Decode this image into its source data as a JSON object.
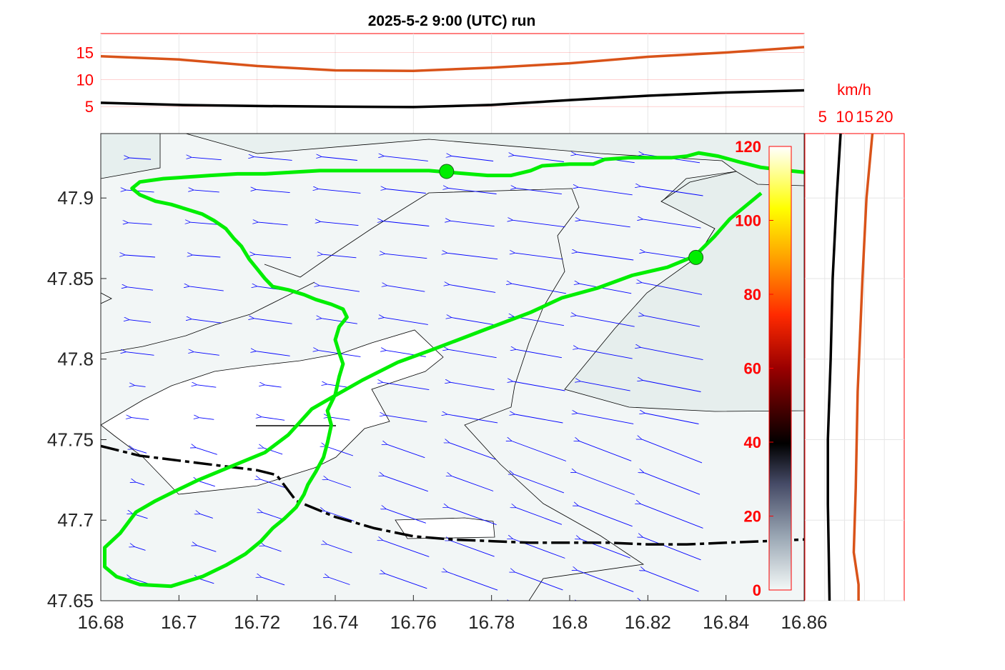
{
  "title": "2025-5-2  9:00 (UTC) run",
  "colors": {
    "track": "#00ee00",
    "border": "#000000",
    "wind_arrow": "#0000ff",
    "series_dark": "#000000",
    "series_orange": "#d95319",
    "tick_red": "#ff0000",
    "tick_dark": "#262626",
    "map_fill": "#f2f6f6",
    "map_fill_dark": "#e8f0ef"
  },
  "chart_data": [
    {
      "id": "top-timeseries",
      "type": "line",
      "ylim": [
        0,
        18.5
      ],
      "xlim": [
        16.68,
        16.86
      ],
      "y_ticks": [
        "5",
        "10",
        "15"
      ],
      "grid": true,
      "series": [
        {
          "color": "#d95319",
          "x": [
            16.68,
            16.7,
            16.72,
            16.74,
            16.76,
            16.78,
            16.8,
            16.82,
            16.84,
            16.86
          ],
          "values": [
            14.3,
            13.7,
            12.5,
            11.7,
            11.6,
            12.2,
            13.0,
            14.2,
            15.0,
            16.0
          ]
        },
        {
          "color": "#000000",
          "x": [
            16.68,
            16.7,
            16.72,
            16.74,
            16.76,
            16.78,
            16.8,
            16.82,
            16.84,
            16.86
          ],
          "values": [
            5.7,
            5.3,
            5.1,
            5.0,
            4.9,
            5.3,
            6.2,
            7.0,
            7.6,
            8.0
          ]
        }
      ]
    },
    {
      "id": "side-profile",
      "type": "line",
      "unit_label": "km/h",
      "x_ticks": [
        "5",
        "10",
        "15",
        "20"
      ],
      "xlim": [
        0,
        25
      ],
      "ylim": [
        47.65,
        47.94
      ],
      "grid": true,
      "series": [
        {
          "color": "#000000",
          "y": [
            47.65,
            47.68,
            47.71,
            47.75,
            47.8,
            47.85,
            47.9,
            47.94
          ],
          "values": [
            6.2,
            6.0,
            5.8,
            5.8,
            6.5,
            7.0,
            8.0,
            9.0
          ]
        },
        {
          "color": "#d95319",
          "y": [
            47.65,
            47.66,
            47.68,
            47.72,
            47.78,
            47.85,
            47.9,
            47.94
          ],
          "values": [
            13.5,
            13.5,
            12.3,
            12.8,
            13.3,
            14.5,
            15.5,
            17.0
          ]
        }
      ]
    },
    {
      "id": "map",
      "type": "map",
      "xlim": [
        16.68,
        16.86
      ],
      "ylim": [
        47.65,
        47.94
      ],
      "x_ticks": [
        "16.68",
        "16.7",
        "16.72",
        "16.74",
        "16.76",
        "16.78",
        "16.8",
        "16.82",
        "16.84",
        "16.86"
      ],
      "y_ticks": [
        "47.65",
        "47.7",
        "47.75",
        "47.8",
        "47.85",
        "47.9"
      ],
      "wind_direction": "from east, slightly southeast",
      "points": [
        {
          "x": 16.7685,
          "y": 47.9165
        },
        {
          "x": 16.8323,
          "y": 47.8631
        }
      ],
      "flight_track": [
        [
          16.769,
          47.916
        ],
        [
          16.779,
          47.914
        ],
        [
          16.785,
          47.914
        ],
        [
          16.79,
          47.917
        ],
        [
          16.793,
          47.92
        ],
        [
          16.8,
          47.921
        ],
        [
          16.806,
          47.921
        ],
        [
          16.809,
          47.924
        ],
        [
          16.815,
          47.925
        ],
        [
          16.826,
          47.925
        ],
        [
          16.83,
          47.926
        ],
        [
          16.833,
          47.928
        ],
        [
          16.838,
          47.926
        ],
        [
          16.844,
          47.922
        ],
        [
          16.849,
          47.919
        ],
        [
          16.856,
          47.917
        ],
        [
          16.86,
          47.916
        ]
      ],
      "route_track": [
        [
          16.849,
          47.903
        ],
        [
          16.845,
          47.895
        ],
        [
          16.841,
          47.887
        ],
        [
          16.837,
          47.876
        ],
        [
          16.832,
          47.864
        ],
        [
          16.825,
          47.857
        ],
        [
          16.816,
          47.852
        ],
        [
          16.807,
          47.844
        ],
        [
          16.798,
          47.838
        ],
        [
          16.79,
          47.829
        ],
        [
          16.778,
          47.818
        ],
        [
          16.765,
          47.806
        ],
        [
          16.756,
          47.798
        ],
        [
          16.747,
          47.787
        ],
        [
          16.739,
          47.776
        ],
        [
          16.734,
          47.769
        ],
        [
          16.731,
          47.761
        ],
        [
          16.728,
          47.753
        ],
        [
          16.722,
          47.742
        ],
        [
          16.711,
          47.731
        ],
        [
          16.705,
          47.725
        ],
        [
          16.699,
          47.718
        ],
        [
          16.694,
          47.712
        ],
        [
          16.689,
          47.705
        ],
        [
          16.685,
          47.692
        ],
        [
          16.681,
          47.683
        ],
        [
          16.681,
          47.671
        ],
        [
          16.684,
          47.665
        ],
        [
          16.69,
          47.66
        ],
        [
          16.698,
          47.659
        ],
        [
          16.706,
          47.665
        ],
        [
          16.712,
          47.672
        ],
        [
          16.717,
          47.679
        ],
        [
          16.721,
          47.687
        ],
        [
          16.724,
          47.695
        ],
        [
          16.727,
          47.701
        ],
        [
          16.73,
          47.708
        ],
        [
          16.732,
          47.716
        ],
        [
          16.733,
          47.722
        ],
        [
          16.735,
          47.73
        ],
        [
          16.737,
          47.739
        ],
        [
          16.738,
          47.748
        ],
        [
          16.739,
          47.759
        ],
        [
          16.738,
          47.768
        ],
        [
          16.74,
          47.778
        ],
        [
          16.741,
          47.789
        ],
        [
          16.742,
          47.797
        ],
        [
          16.741,
          47.804
        ],
        [
          16.74,
          47.812
        ],
        [
          16.741,
          47.82
        ],
        [
          16.743,
          47.826
        ],
        [
          16.742,
          47.831
        ],
        [
          16.739,
          47.834
        ],
        [
          16.735,
          47.837
        ],
        [
          16.732,
          47.84
        ],
        [
          16.728,
          47.843
        ],
        [
          16.724,
          47.845
        ],
        [
          16.722,
          47.85
        ],
        [
          16.72,
          47.856
        ],
        [
          16.718,
          47.862
        ],
        [
          16.716,
          47.87
        ],
        [
          16.714,
          47.875
        ],
        [
          16.712,
          47.881
        ],
        [
          16.709,
          47.886
        ],
        [
          16.706,
          47.89
        ],
        [
          16.702,
          47.893
        ],
        [
          16.698,
          47.896
        ],
        [
          16.694,
          47.898
        ],
        [
          16.69,
          47.902
        ],
        [
          16.688,
          47.906
        ],
        [
          16.69,
          47.91
        ],
        [
          16.696,
          47.912
        ],
        [
          16.702,
          47.913
        ],
        [
          16.708,
          47.914
        ],
        [
          16.715,
          47.915
        ],
        [
          16.722,
          47.915
        ],
        [
          16.729,
          47.916
        ],
        [
          16.736,
          47.917
        ],
        [
          16.743,
          47.917
        ],
        [
          16.75,
          47.917
        ],
        [
          16.757,
          47.917
        ],
        [
          16.764,
          47.917
        ],
        [
          16.769,
          47.916
        ]
      ],
      "border": [
        [
          16.68,
          47.746
        ],
        [
          16.69,
          47.74
        ],
        [
          16.7,
          47.737
        ],
        [
          16.71,
          47.734
        ],
        [
          16.72,
          47.731
        ],
        [
          16.725,
          47.728
        ],
        [
          16.73,
          47.712
        ],
        [
          16.74,
          47.702
        ],
        [
          16.75,
          47.695
        ],
        [
          16.76,
          47.69
        ],
        [
          16.77,
          47.688
        ],
        [
          16.78,
          47.687
        ],
        [
          16.79,
          47.686
        ],
        [
          16.8,
          47.686
        ],
        [
          16.81,
          47.686
        ],
        [
          16.82,
          47.685
        ],
        [
          16.83,
          47.685
        ],
        [
          16.84,
          47.686
        ],
        [
          16.85,
          47.687
        ],
        [
          16.86,
          47.688
        ]
      ]
    }
  ],
  "colorbar": {
    "ticks": [
      "0",
      "20",
      "40",
      "60",
      "80",
      "100",
      "120"
    ],
    "range": [
      0,
      120
    ]
  }
}
